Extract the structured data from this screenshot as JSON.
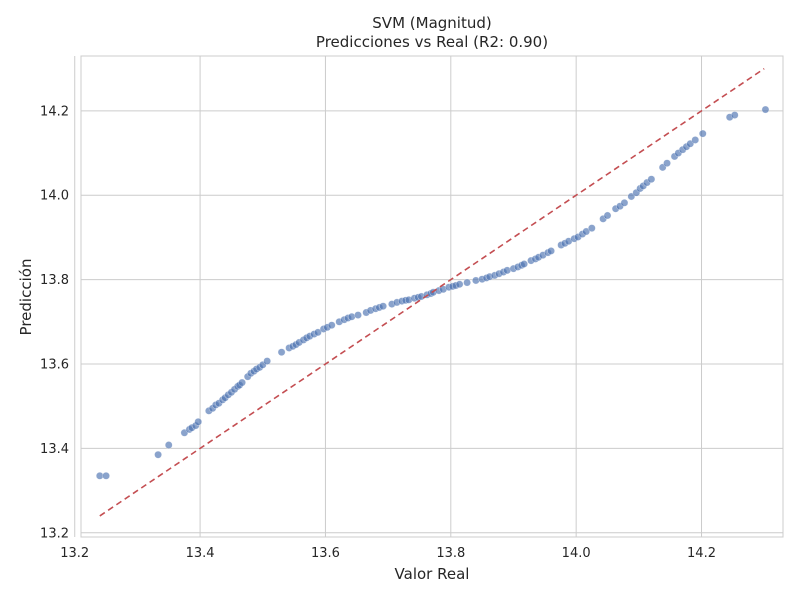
{
  "chart_data": {
    "type": "scatter",
    "title": "SVM (Magnitud)",
    "subtitle": "Predicciones vs Real (R2: 0.90)",
    "xlabel": "Valor Real",
    "ylabel": "Predicción",
    "xlim": [
      13.21,
      14.33
    ],
    "ylim": [
      13.19,
      14.33
    ],
    "xticks": [
      13.2,
      13.4,
      13.6,
      13.8,
      14.0,
      14.2
    ],
    "xtick_labels": [
      "13.2",
      "13.4",
      "13.6",
      "13.8",
      "14.0",
      "14.2"
    ],
    "yticks": [
      13.2,
      13.4,
      13.6,
      13.8,
      14.0,
      14.2
    ],
    "ytick_labels": [
      "13.2",
      "13.4",
      "13.6",
      "13.8",
      "14.0",
      "14.2"
    ],
    "grid": true,
    "colors": {
      "points": "#4c72b0",
      "reference_line": "#c44e52",
      "grid": "#cccccc",
      "spine": "#cccccc"
    },
    "reference_line": {
      "x": [
        13.24,
        14.3
      ],
      "y": [
        13.24,
        14.3
      ],
      "style": "dashed"
    },
    "points": [
      [
        13.24,
        13.335
      ],
      [
        13.25,
        13.335
      ],
      [
        13.333,
        13.385
      ],
      [
        13.35,
        13.408
      ],
      [
        13.375,
        13.437
      ],
      [
        13.383,
        13.445
      ],
      [
        13.387,
        13.449
      ],
      [
        13.393,
        13.454
      ],
      [
        13.397,
        13.463
      ],
      [
        13.414,
        13.489
      ],
      [
        13.42,
        13.495
      ],
      [
        13.425,
        13.503
      ],
      [
        13.43,
        13.507
      ],
      [
        13.436,
        13.515
      ],
      [
        13.44,
        13.52
      ],
      [
        13.445,
        13.527
      ],
      [
        13.45,
        13.533
      ],
      [
        13.455,
        13.54
      ],
      [
        13.46,
        13.547
      ],
      [
        13.463,
        13.55
      ],
      [
        13.467,
        13.556
      ],
      [
        13.476,
        13.57
      ],
      [
        13.481,
        13.578
      ],
      [
        13.486,
        13.583
      ],
      [
        13.49,
        13.588
      ],
      [
        13.495,
        13.592
      ],
      [
        13.5,
        13.598
      ],
      [
        13.507,
        13.607
      ],
      [
        13.53,
        13.628
      ],
      [
        13.542,
        13.638
      ],
      [
        13.548,
        13.642
      ],
      [
        13.553,
        13.646
      ],
      [
        13.558,
        13.651
      ],
      [
        13.565,
        13.657
      ],
      [
        13.57,
        13.662
      ],
      [
        13.575,
        13.666
      ],
      [
        13.582,
        13.671
      ],
      [
        13.588,
        13.675
      ],
      [
        13.597,
        13.683
      ],
      [
        13.603,
        13.687
      ],
      [
        13.61,
        13.692
      ],
      [
        13.622,
        13.7
      ],
      [
        13.63,
        13.705
      ],
      [
        13.636,
        13.709
      ],
      [
        13.642,
        13.712
      ],
      [
        13.652,
        13.716
      ],
      [
        13.665,
        13.722
      ],
      [
        13.672,
        13.727
      ],
      [
        13.68,
        13.731
      ],
      [
        13.686,
        13.734
      ],
      [
        13.692,
        13.737
      ],
      [
        13.706,
        13.742
      ],
      [
        13.714,
        13.746
      ],
      [
        13.722,
        13.749
      ],
      [
        13.728,
        13.751
      ],
      [
        13.733,
        13.752
      ],
      [
        13.742,
        13.756
      ],
      [
        13.748,
        13.758
      ],
      [
        13.753,
        13.76
      ],
      [
        13.762,
        13.764
      ],
      [
        13.768,
        13.767
      ],
      [
        13.772,
        13.77
      ],
      [
        13.781,
        13.774
      ],
      [
        13.788,
        13.777
      ],
      [
        13.797,
        13.782
      ],
      [
        13.803,
        13.784
      ],
      [
        13.808,
        13.786
      ],
      [
        13.814,
        13.789
      ],
      [
        13.826,
        13.793
      ],
      [
        13.84,
        13.798
      ],
      [
        13.85,
        13.801
      ],
      [
        13.857,
        13.804
      ],
      [
        13.862,
        13.807
      ],
      [
        13.87,
        13.81
      ],
      [
        13.877,
        13.814
      ],
      [
        13.884,
        13.818
      ],
      [
        13.89,
        13.822
      ],
      [
        13.9,
        13.826
      ],
      [
        13.907,
        13.83
      ],
      [
        13.913,
        13.834
      ],
      [
        13.917,
        13.837
      ],
      [
        13.928,
        13.845
      ],
      [
        13.935,
        13.849
      ],
      [
        13.94,
        13.853
      ],
      [
        13.947,
        13.858
      ],
      [
        13.955,
        13.864
      ],
      [
        13.96,
        13.868
      ],
      [
        13.976,
        13.882
      ],
      [
        13.982,
        13.886
      ],
      [
        13.988,
        13.891
      ],
      [
        13.997,
        13.897
      ],
      [
        14.003,
        13.901
      ],
      [
        14.01,
        13.908
      ],
      [
        14.016,
        13.914
      ],
      [
        14.025,
        13.922
      ],
      [
        14.043,
        13.944
      ],
      [
        14.05,
        13.952
      ],
      [
        14.063,
        13.968
      ],
      [
        14.07,
        13.974
      ],
      [
        14.077,
        13.982
      ],
      [
        14.088,
        13.997
      ],
      [
        14.096,
        14.006
      ],
      [
        14.102,
        14.016
      ],
      [
        14.107,
        14.022
      ],
      [
        14.113,
        14.03
      ],
      [
        14.12,
        14.038
      ],
      [
        14.138,
        14.066
      ],
      [
        14.145,
        14.076
      ],
      [
        14.157,
        14.092
      ],
      [
        14.163,
        14.1
      ],
      [
        14.17,
        14.108
      ],
      [
        14.176,
        14.115
      ],
      [
        14.182,
        14.122
      ],
      [
        14.19,
        14.131
      ],
      [
        14.202,
        14.146
      ],
      [
        14.245,
        14.185
      ],
      [
        14.253,
        14.19
      ],
      [
        14.302,
        14.203
      ]
    ]
  }
}
